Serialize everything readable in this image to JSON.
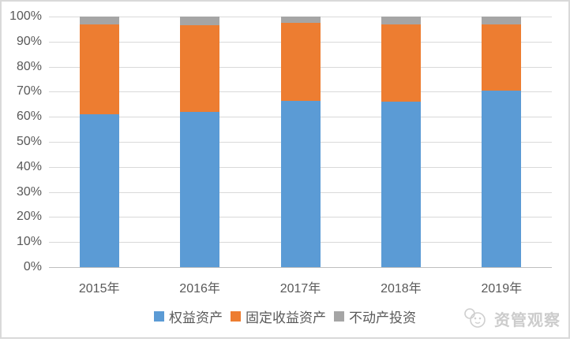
{
  "chart_data": {
    "type": "bar",
    "subtype": "stacked-100-percent-column",
    "title": "",
    "xlabel": "",
    "ylabel": "",
    "categories": [
      "2015年",
      "2016年",
      "2017年",
      "2018年",
      "2019年"
    ],
    "series": [
      {
        "name": "权益资产",
        "color": "#5B9BD5",
        "values": [
          61,
          62,
          66.5,
          66,
          70.5
        ]
      },
      {
        "name": "固定收益资产",
        "color": "#ED7D31",
        "values": [
          36,
          34.5,
          31,
          31,
          26.5
        ]
      },
      {
        "name": "不动产投资",
        "color": "#A5A5A5",
        "values": [
          3,
          3.5,
          2.5,
          3,
          3
        ]
      }
    ],
    "ylim": [
      0,
      100
    ],
    "y_tick_step": 10,
    "y_tick_labels": [
      "100%",
      "90%",
      "80%",
      "70%",
      "60%",
      "50%",
      "40%",
      "30%",
      "20%",
      "10%",
      "0%"
    ],
    "grid": true,
    "legend_position": "bottom"
  },
  "colors": {
    "axis_text": "#595959",
    "gridline": "#D9D9D9",
    "axis_line": "#BFBFBF",
    "frame_border": "#D9D9D9",
    "watermark": "#CCCCCC"
  },
  "watermark": {
    "text": "资管观察",
    "icon": "panda-face-logo"
  }
}
